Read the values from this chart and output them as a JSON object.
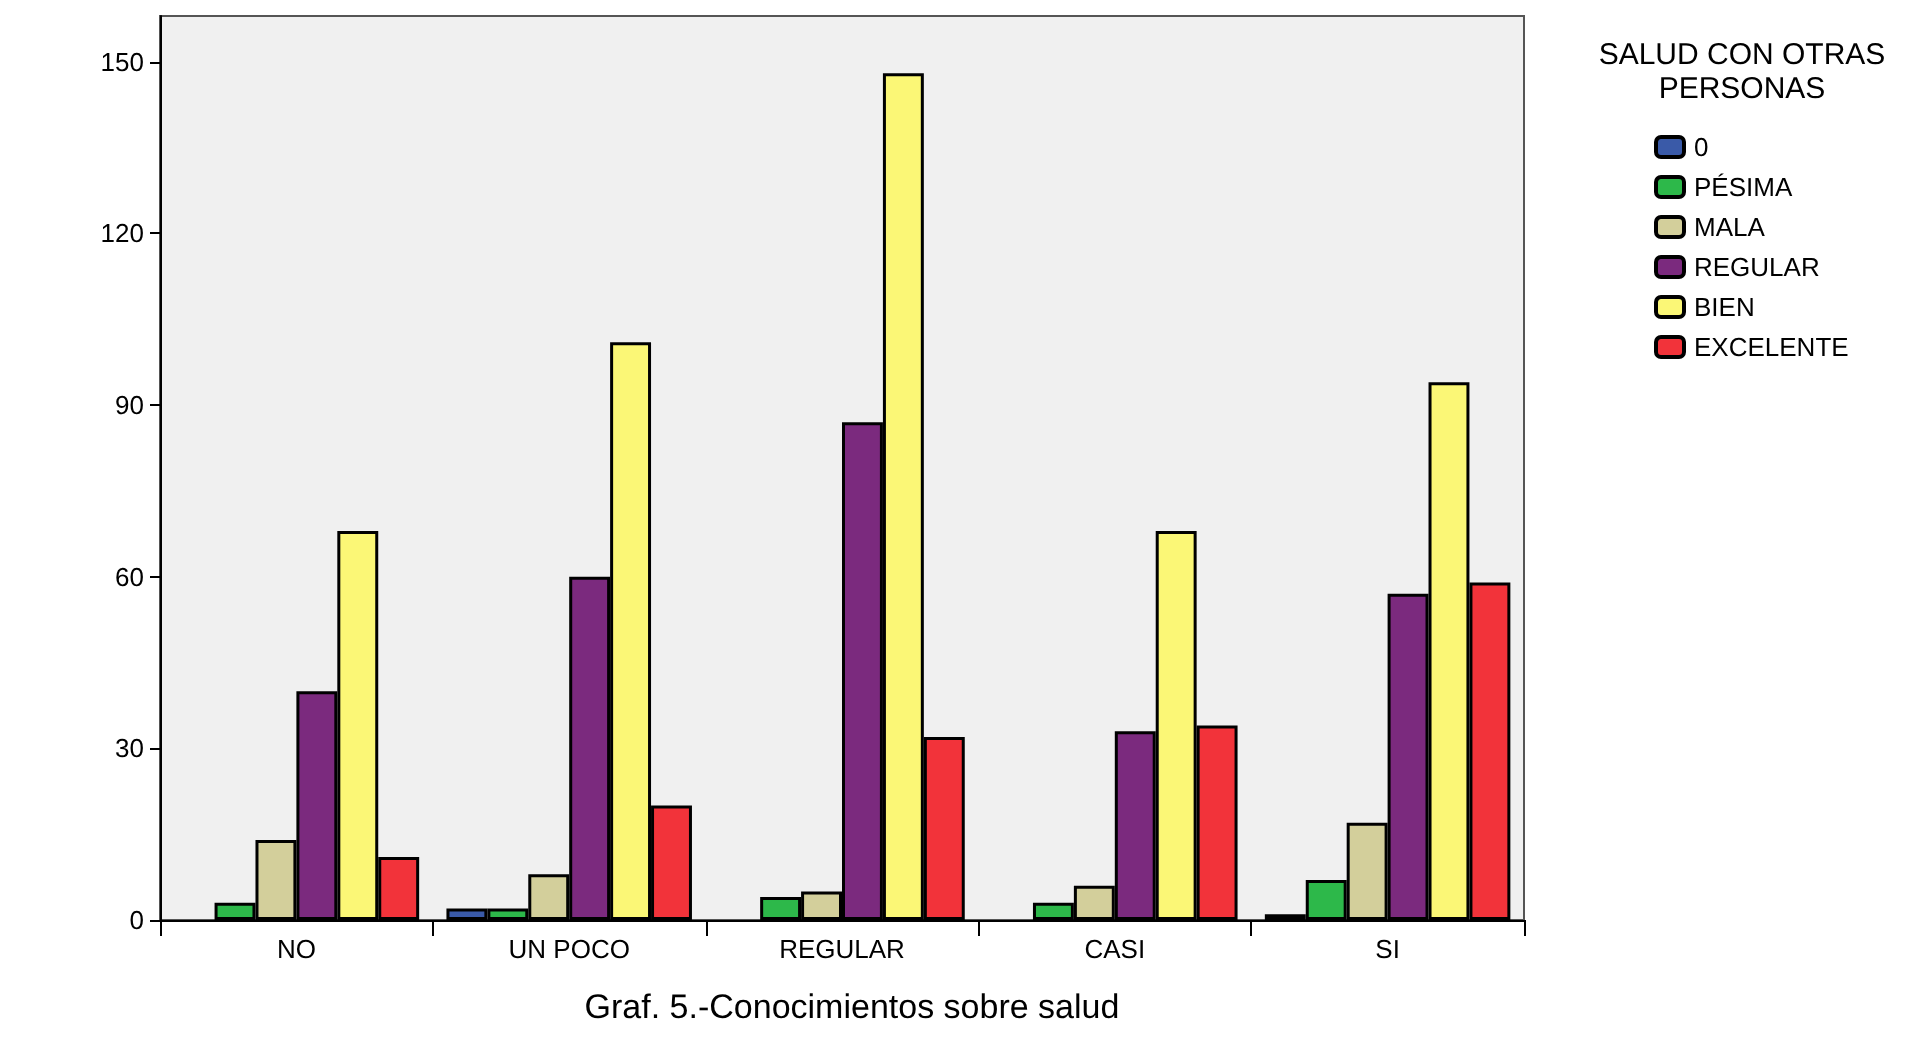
{
  "chart_data": {
    "type": "bar",
    "title": "Graf. 5.-Conocimientos sobre salud",
    "legend_title": "SALUD CON OTRAS\nPERSONAS",
    "categories": [
      "NO",
      "UN POCO",
      "REGULAR",
      "CASI",
      "SI"
    ],
    "series": [
      {
        "name": "0",
        "color": "#3a5aa8",
        "values": [
          null,
          2,
          null,
          null,
          1
        ]
      },
      {
        "name": "PÉSIMA",
        "color": "#2db84a",
        "values": [
          3,
          2,
          4,
          3,
          7
        ]
      },
      {
        "name": "MALA",
        "color": "#d3cf9b",
        "values": [
          14,
          8,
          5,
          6,
          17
        ]
      },
      {
        "name": "REGULAR",
        "color": "#7b2a7e",
        "values": [
          40,
          60,
          87,
          33,
          57
        ]
      },
      {
        "name": "BIEN",
        "color": "#fbf776",
        "values": [
          68,
          101,
          148,
          68,
          94
        ]
      },
      {
        "name": "EXCELENTE",
        "color": "#f2333a",
        "values": [
          11,
          20,
          32,
          34,
          59
        ]
      }
    ],
    "ylim": [
      0,
      158
    ],
    "yticks": [
      0,
      30,
      60,
      90,
      120,
      150
    ],
    "grid": false,
    "legend": "right"
  }
}
